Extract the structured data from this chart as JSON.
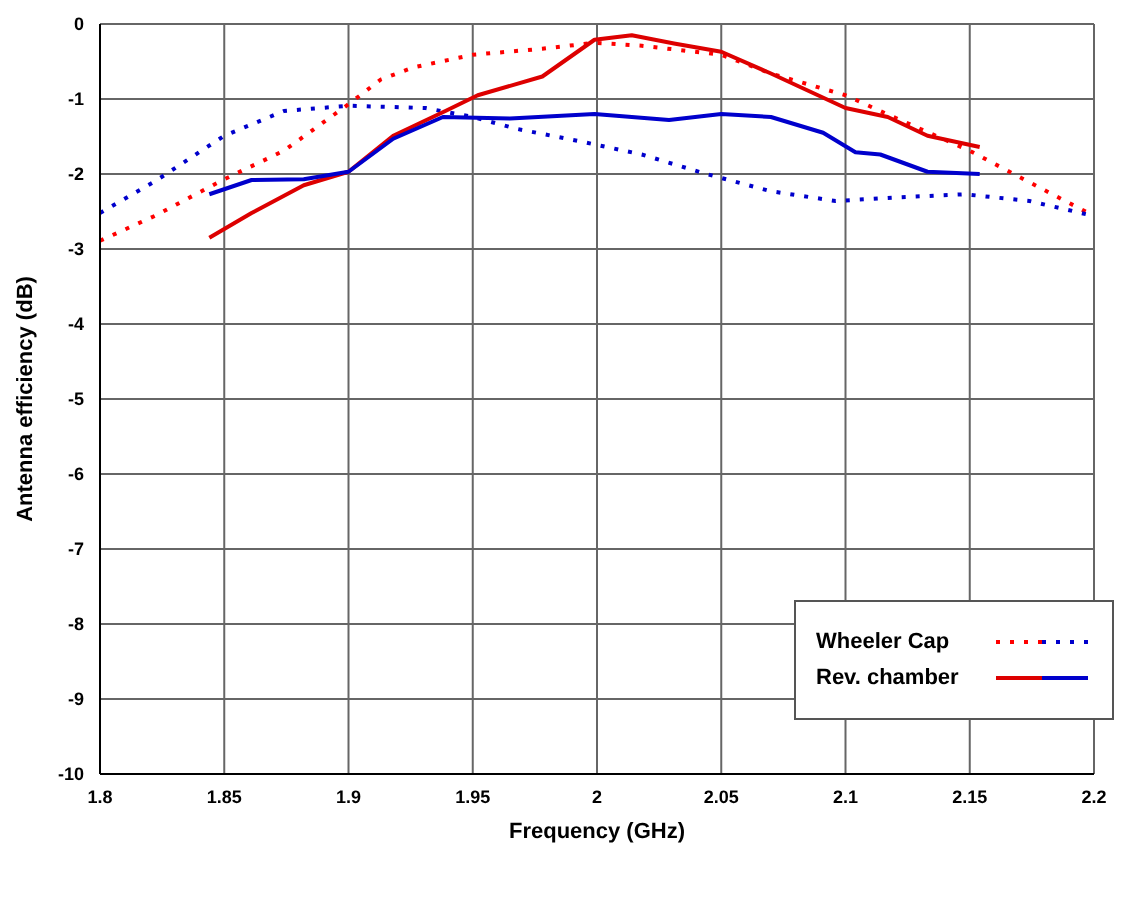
{
  "chart_data": {
    "type": "line",
    "xlabel": "Frequency (GHz)",
    "ylabel": "Antenna efficiency (dB)",
    "xlim": [
      1.8,
      2.2
    ],
    "xticks": [
      1.8,
      1.85,
      1.9,
      1.95,
      2,
      2.05,
      2.1,
      2.15,
      2.2
    ],
    "ylim": [
      -10,
      0
    ],
    "yticks": [
      -10,
      -9,
      -8,
      -7,
      -6,
      -5,
      -4,
      -3,
      -2,
      -1,
      0
    ],
    "grid": true,
    "legend": "bottom right",
    "marker": "none",
    "series": [
      {
        "name": "Wheeler Cap",
        "color": "#ff0000",
        "line_style": "dotted",
        "x": [
          1.8,
          1.822,
          1.85,
          1.874,
          1.9,
          1.913,
          1.926,
          1.95,
          1.978,
          1.999,
          2.018,
          2.05,
          2.07,
          2.1,
          2.122,
          2.15,
          2.174,
          2.2
        ],
        "values": [
          -2.89,
          -2.56,
          -2.07,
          -1.69,
          -1.07,
          -0.74,
          -0.58,
          -0.41,
          -0.33,
          -0.25,
          -0.29,
          -0.41,
          -0.66,
          -0.95,
          -1.28,
          -1.69,
          -2.11,
          -2.56
        ]
      },
      {
        "color": "#0000cc",
        "line_style": "dotted",
        "x": [
          1.8,
          1.822,
          1.85,
          1.874,
          1.9,
          1.931,
          1.95,
          1.968,
          1.994,
          2.018,
          2.044,
          2.07,
          2.096,
          2.122,
          2.148,
          2.174,
          2.2
        ],
        "values": [
          -2.52,
          -2.1,
          -1.49,
          -1.16,
          -1.09,
          -1.12,
          -1.24,
          -1.4,
          -1.57,
          -1.74,
          -2.0,
          -2.23,
          -2.36,
          -2.31,
          -2.27,
          -2.36,
          -2.56
        ]
      },
      {
        "name": "Rev. chamber",
        "color": "#dd0000",
        "line_style": "solid",
        "x": [
          1.844,
          1.861,
          1.882,
          1.9,
          1.918,
          1.939,
          1.952,
          1.978,
          1.999,
          2.014,
          2.031,
          2.05,
          2.07,
          2.1,
          2.117,
          2.133,
          2.154
        ],
        "values": [
          -2.85,
          -2.52,
          -2.15,
          -1.97,
          -1.49,
          -1.16,
          -0.95,
          -0.7,
          -0.21,
          -0.15,
          -0.26,
          -0.37,
          -0.66,
          -1.12,
          -1.24,
          -1.49,
          -1.64
        ]
      },
      {
        "color": "#0000cc",
        "line_style": "solid",
        "x": [
          1.844,
          1.861,
          1.882,
          1.9,
          1.918,
          1.938,
          1.965,
          1.999,
          2.029,
          2.05,
          2.07,
          2.091,
          2.104,
          2.114,
          2.133,
          2.154
        ],
        "values": [
          -2.27,
          -2.08,
          -2.07,
          -1.97,
          -1.53,
          -1.24,
          -1.26,
          -1.2,
          -1.28,
          -1.2,
          -1.24,
          -1.45,
          -1.71,
          -1.74,
          -1.97,
          -2.0
        ]
      }
    ]
  }
}
